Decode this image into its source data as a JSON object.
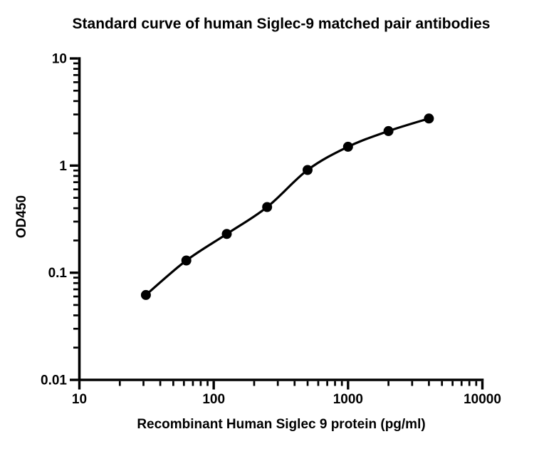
{
  "chart_data": {
    "type": "scatter",
    "title": "Standard curve of human Siglec-9 matched pair antibodies",
    "xlabel": "Recombinant Human Siglec 9 protein (pg/ml)",
    "ylabel": "OD450",
    "x_scale": "log",
    "y_scale": "log",
    "xlim": [
      10,
      10000
    ],
    "ylim": [
      0.01,
      10
    ],
    "x_tick_labels": [
      "10",
      "100",
      "1000",
      "10000"
    ],
    "y_tick_labels": [
      "10",
      "1",
      "0.1",
      "0.01"
    ],
    "grid": "off",
    "legend_position": "none",
    "line_color": "#000000",
    "marker_color": "#000000",
    "series": [
      {
        "name": "standard-curve",
        "marker": "filled-circle",
        "fit_line": true,
        "x": [
          31.25,
          62.5,
          125,
          250,
          500,
          1000,
          2000,
          4000
        ],
        "y": [
          0.062,
          0.13,
          0.23,
          0.41,
          0.91,
          1.5,
          2.1,
          2.75
        ]
      }
    ]
  }
}
